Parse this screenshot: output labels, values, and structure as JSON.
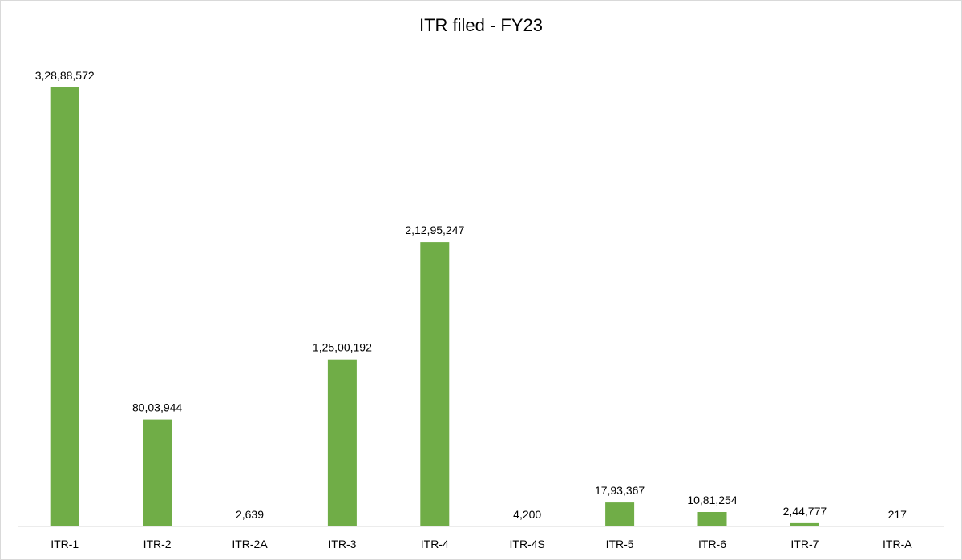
{
  "chart_data": {
    "type": "bar",
    "title": "ITR filed - FY23",
    "xlabel": "",
    "ylabel": "",
    "categories": [
      "ITR-1",
      "ITR-2",
      "ITR-2A",
      "ITR-3",
      "ITR-4",
      "ITR-4S",
      "ITR-5",
      "ITR-6",
      "ITR-7",
      "ITR-A"
    ],
    "values": [
      32888572,
      8003944,
      2639,
      12500192,
      21295247,
      4200,
      1793367,
      1081254,
      244777,
      217
    ],
    "data_labels": [
      "3,28,88,572",
      "80,03,944",
      "2,639",
      "1,25,00,192",
      "2,12,95,247",
      "4,200",
      "17,93,367",
      "10,81,254",
      "2,44,777",
      "217"
    ],
    "ylim": [
      0,
      36000000
    ],
    "grid": false,
    "legend": "none",
    "bar_color": "#70ad47",
    "axis_color": "#d9d9d9"
  }
}
